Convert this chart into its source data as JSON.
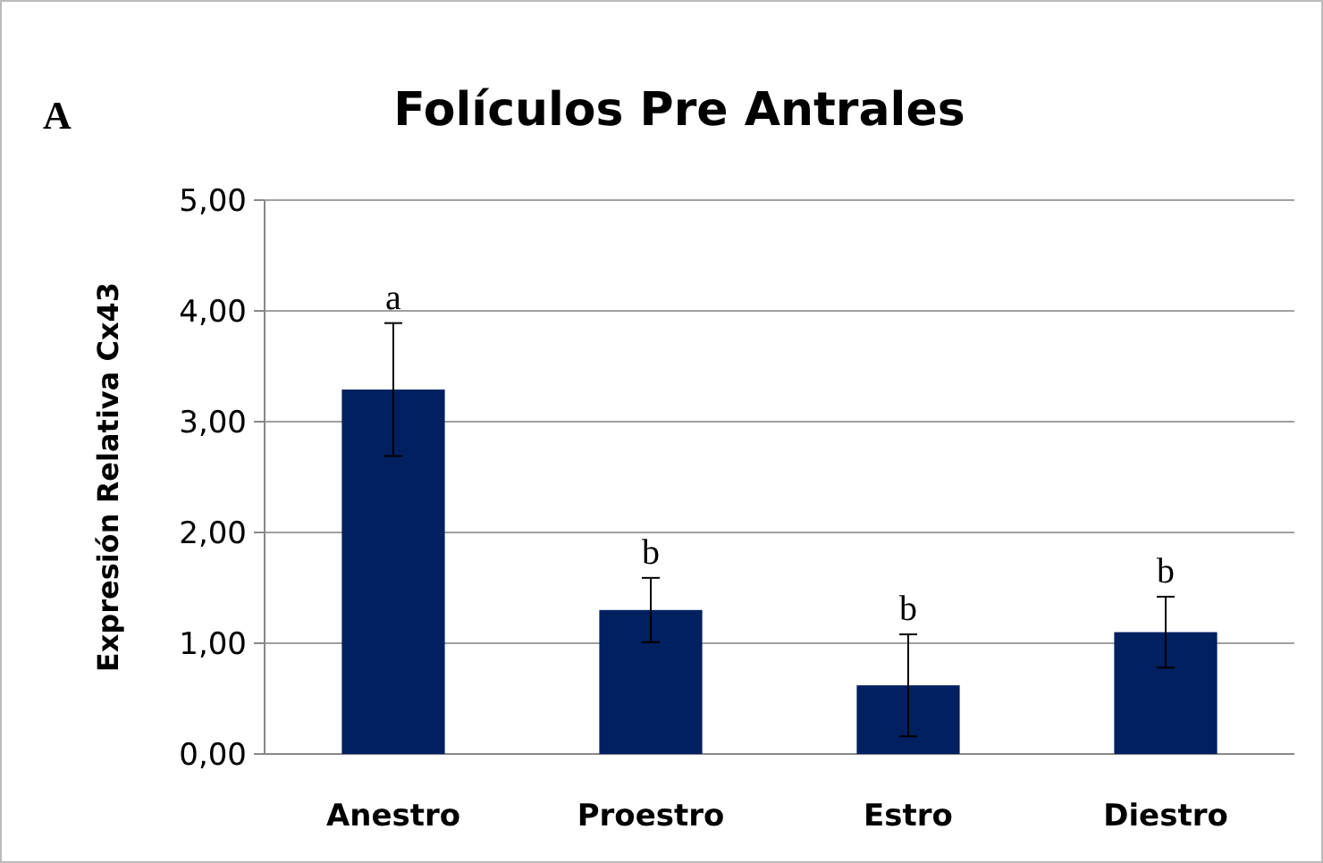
{
  "chart_data": {
    "type": "bar",
    "title": "Folículos Pre Antrales",
    "ylabel": "Expresión Relativa Cx43",
    "categories": [
      "Anestro",
      "Proestro",
      "Estro",
      "Diestro"
    ],
    "values": [
      3.29,
      1.3,
      0.62,
      1.1
    ],
    "color": "#002060",
    "errors": [
      0.6,
      0.29,
      0.46,
      0.32
    ],
    "ylim": [
      0,
      5
    ],
    "yticks": [
      {
        "value": 0,
        "label": "0,00"
      },
      {
        "value": 1,
        "label": "1,00"
      },
      {
        "value": 2,
        "label": "2,00"
      },
      {
        "value": 3,
        "label": "3,00"
      },
      {
        "value": 4,
        "label": "4,00"
      },
      {
        "value": 5,
        "label": "5,00"
      }
    ],
    "grid": "y",
    "annotations": [
      "A",
      {
        "text": "a",
        "x": "Anestro",
        "y": 3.89
      },
      {
        "text": "b",
        "x": "Proestro",
        "y": 1.59
      },
      {
        "text": "b",
        "x": "Estro",
        "y": 1.08
      },
      {
        "text": "b",
        "x": "Diestro",
        "y": 1.42
      }
    ]
  }
}
